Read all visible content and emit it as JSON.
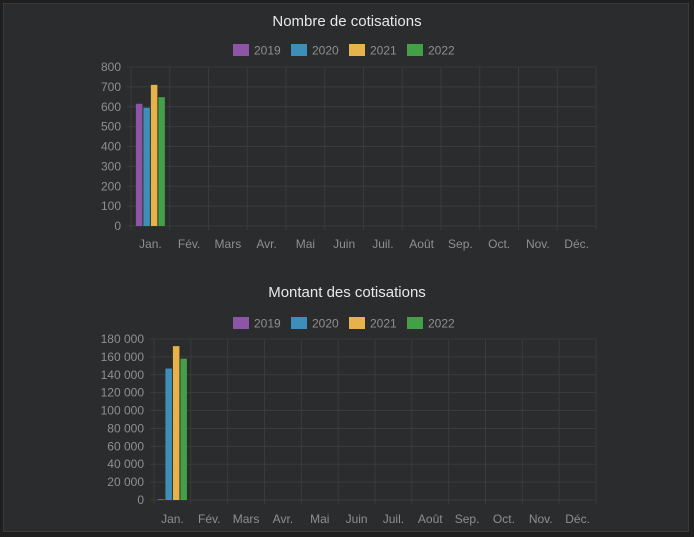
{
  "months": [
    "Jan.",
    "Fév.",
    "Mars",
    "Avr.",
    "Mai",
    "Juin",
    "Juil.",
    "Août",
    "Sep.",
    "Oct.",
    "Nov.",
    "Déc."
  ],
  "chart_data": [
    {
      "type": "bar",
      "title": "Nombre de cotisations",
      "categories": [
        "Jan.",
        "Fév.",
        "Mars",
        "Avr.",
        "Mai",
        "Juin",
        "Juil.",
        "Août",
        "Sep.",
        "Oct.",
        "Nov.",
        "Déc."
      ],
      "ylim": [
        0,
        800
      ],
      "yticks": [
        "0",
        "100",
        "200",
        "300",
        "400",
        "500",
        "600",
        "700",
        "800"
      ],
      "grid": true,
      "legend_position": "top",
      "series": [
        {
          "name": "2019",
          "color": "#8e54a6",
          "values": [
            615,
            null,
            null,
            null,
            null,
            null,
            null,
            null,
            null,
            null,
            null,
            null
          ]
        },
        {
          "name": "2020",
          "color": "#3d8eb9",
          "values": [
            595,
            null,
            null,
            null,
            null,
            null,
            null,
            null,
            null,
            null,
            null,
            null
          ]
        },
        {
          "name": "2021",
          "color": "#e8b24a",
          "values": [
            710,
            null,
            null,
            null,
            null,
            null,
            null,
            null,
            null,
            null,
            null,
            null
          ]
        },
        {
          "name": "2022",
          "color": "#43a047",
          "values": [
            648,
            null,
            null,
            null,
            null,
            null,
            null,
            null,
            null,
            null,
            null,
            null
          ]
        }
      ]
    },
    {
      "type": "bar",
      "title": "Montant des cotisations",
      "categories": [
        "Jan.",
        "Fév.",
        "Mars",
        "Avr.",
        "Mai",
        "Juin",
        "Juil.",
        "Août",
        "Sep.",
        "Oct.",
        "Nov.",
        "Déc."
      ],
      "ylim": [
        0,
        180000
      ],
      "yticks": [
        "0",
        "20 000",
        "40 000",
        "60 000",
        "80 000",
        "100 000",
        "120 000",
        "140 000",
        "160 000",
        "180 000"
      ],
      "grid": true,
      "legend_position": "top",
      "series": [
        {
          "name": "2019",
          "color": "#8e54a6",
          "values": [
            1000,
            null,
            null,
            null,
            null,
            null,
            null,
            null,
            null,
            null,
            null,
            null
          ]
        },
        {
          "name": "2020",
          "color": "#3d8eb9",
          "values": [
            147000,
            null,
            null,
            null,
            null,
            null,
            null,
            null,
            null,
            null,
            null,
            null
          ]
        },
        {
          "name": "2021",
          "color": "#e8b24a",
          "values": [
            172000,
            null,
            null,
            null,
            null,
            null,
            null,
            null,
            null,
            null,
            null,
            null
          ]
        },
        {
          "name": "2022",
          "color": "#43a047",
          "values": [
            158000,
            null,
            null,
            null,
            null,
            null,
            null,
            null,
            null,
            null,
            null,
            null
          ]
        }
      ]
    }
  ]
}
